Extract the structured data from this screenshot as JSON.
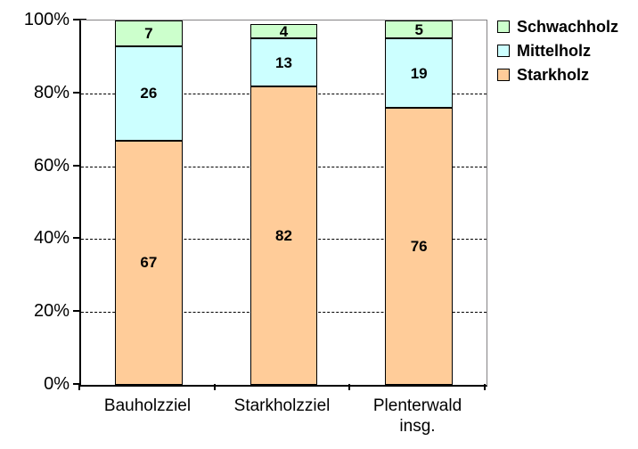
{
  "chart_data": {
    "type": "bar",
    "stacked": true,
    "unit": "percent",
    "title": "",
    "xlabel": "",
    "ylabel": "",
    "ylim": [
      0,
      100
    ],
    "grid": "horizontal-dashed",
    "legend_position": "right",
    "categories": [
      "Bauholzziel",
      "Starkholzziel",
      "Plenterwald\ninsg."
    ],
    "y_ticks": [
      "100%",
      "80%",
      "60%",
      "40%",
      "20%",
      "0%"
    ],
    "series": [
      {
        "name": "Schwachholz",
        "color": "#ccffcc",
        "values": [
          7,
          4,
          5
        ]
      },
      {
        "name": "Mittelholz",
        "color": "#ccffff",
        "values": [
          26,
          13,
          19
        ]
      },
      {
        "name": "Starkholz",
        "color": "#ffcc99",
        "values": [
          67,
          82,
          76
        ]
      }
    ]
  }
}
